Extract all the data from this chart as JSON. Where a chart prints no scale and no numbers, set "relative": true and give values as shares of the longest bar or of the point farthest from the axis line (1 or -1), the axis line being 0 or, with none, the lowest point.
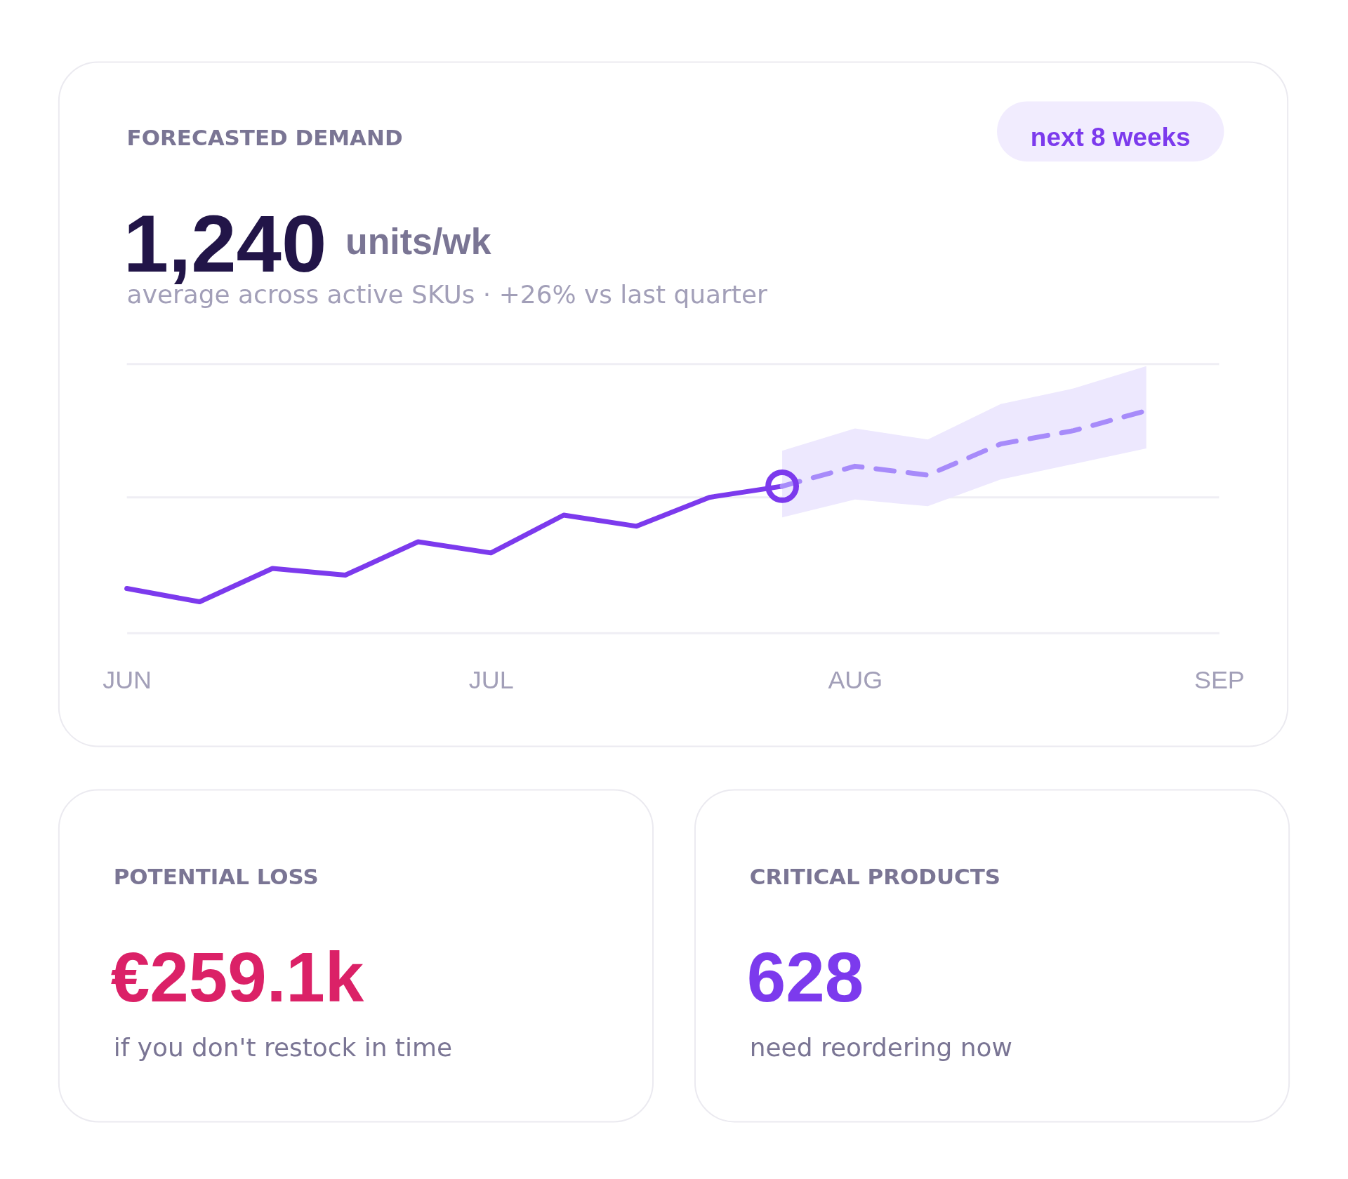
{
  "chart_data": [
    {
      "type": "line",
      "title": "FORECASTED DEMAND",
      "subtitle": "average across active SKUs · +26% vs last quarter",
      "annotations": [
        "next 8 weeks",
        "1,240",
        "units/wk"
      ],
      "relative": true,
      "ref_lines": [
        {
          "axis": "y",
          "value": 0.61,
          "color": "#efeef4"
        },
        {
          "axis": "y",
          "value": 1.21,
          "color": "#efeef4"
        }
      ],
      "categories": [
        "JUN",
        null,
        null,
        null,
        null,
        "JUL",
        null,
        null,
        null,
        null,
        "AUG",
        null,
        null,
        null,
        null,
        "SEP"
      ],
      "series": [
        {
          "type": "line",
          "color": "#7c3aed",
          "line_style": "solid",
          "values": [
            0.2,
            0.14,
            0.29,
            0.26,
            0.41,
            0.36,
            0.53,
            0.48,
            0.61,
            0.66,
            null,
            null,
            null,
            null,
            null,
            null
          ]
        },
        {
          "type": "line",
          "color": "#a78bfa",
          "line_style": "dashed",
          "values": [
            null,
            null,
            null,
            null,
            null,
            null,
            null,
            null,
            null,
            0.66,
            0.75,
            0.71,
            0.85,
            0.91,
            1.0,
            null
          ],
          "lower": [
            null,
            null,
            null,
            null,
            null,
            null,
            null,
            null,
            null,
            0.52,
            0.6,
            0.57,
            0.69,
            0.76,
            0.83,
            null
          ],
          "upper": [
            null,
            null,
            null,
            null,
            null,
            null,
            null,
            null,
            null,
            0.82,
            0.92,
            0.87,
            1.03,
            1.1,
            1.2,
            null
          ]
        },
        {
          "type": "scatter",
          "color": "#7c3aed",
          "marker": "circle",
          "values": [
            null,
            null,
            null,
            null,
            null,
            null,
            null,
            null,
            null,
            0.66,
            null,
            null,
            null,
            null,
            null,
            null
          ]
        }
      ]
    },
    {
      "type": "other",
      "title": "POTENTIAL LOSS",
      "color": "#db2167",
      "annotations": [
        "€259.1k",
        "if you don't restock in time"
      ]
    },
    {
      "type": "other",
      "title": "CRITICAL PRODUCTS",
      "color": "#7c3aed",
      "annotations": [
        "628",
        "need reordering now"
      ]
    }
  ]
}
